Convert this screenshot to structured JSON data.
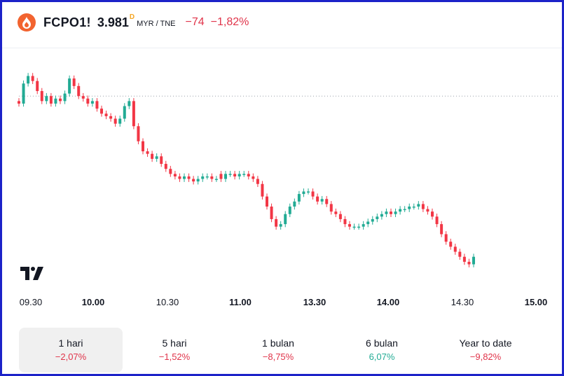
{
  "header": {
    "symbol": "FCPO1!",
    "price": "3.981",
    "delay_marker": "D",
    "currency": "MYR / TNE",
    "change": "−74",
    "change_percent": "−1,82%",
    "logo_icon": "flame-icon",
    "brand_color": "#f2632f",
    "negative_color": "#e0344a"
  },
  "chart_data": {
    "type": "candlestick",
    "title": "",
    "x_axis_labels": [
      {
        "label": "09.30",
        "major": false
      },
      {
        "label": "10.00",
        "major": true
      },
      {
        "label": "10.30",
        "major": false
      },
      {
        "label": "11.00",
        "major": true
      },
      {
        "label": "13.30",
        "major": true
      },
      {
        "label": "14.00",
        "major": true
      },
      {
        "label": "14.30",
        "major": false
      },
      {
        "label": "15.00",
        "major": true
      }
    ],
    "reference_line": "previous close (dotted)",
    "series_close_path": [
      [
        0,
        4042
      ],
      [
        1,
        4050
      ],
      [
        2,
        4053
      ],
      [
        3,
        4051
      ],
      [
        4,
        4047
      ],
      [
        5,
        4043
      ],
      [
        6,
        4045
      ],
      [
        7,
        4042
      ],
      [
        8,
        4044
      ],
      [
        9,
        4043
      ],
      [
        10,
        4046
      ],
      [
        11,
        4052
      ],
      [
        12,
        4049
      ],
      [
        13,
        4045
      ],
      [
        14,
        4044
      ],
      [
        15,
        4042
      ],
      [
        16,
        4043
      ],
      [
        17,
        4040
      ],
      [
        18,
        4038
      ],
      [
        19,
        4037
      ],
      [
        20,
        4036
      ],
      [
        21,
        4034
      ],
      [
        22,
        4036
      ],
      [
        23,
        4041
      ],
      [
        24,
        4043
      ],
      [
        25,
        4033
      ],
      [
        26,
        4027
      ],
      [
        27,
        4023
      ],
      [
        28,
        4022
      ],
      [
        29,
        4020
      ],
      [
        30,
        4021
      ],
      [
        31,
        4018
      ],
      [
        32,
        4016
      ],
      [
        33,
        4014
      ],
      [
        34,
        4013
      ],
      [
        35,
        4012
      ],
      [
        36,
        4013
      ],
      [
        37,
        4012
      ],
      [
        38,
        4011
      ],
      [
        39,
        4012
      ],
      [
        40,
        4013
      ],
      [
        41,
        4013
      ],
      [
        42,
        4012
      ],
      [
        43,
        4012
      ],
      [
        44,
        4012
      ],
      [
        45,
        4014
      ],
      [
        46,
        4014
      ],
      [
        47,
        4013
      ],
      [
        48,
        4014
      ],
      [
        49,
        4014
      ],
      [
        50,
        4013
      ],
      [
        51,
        4012
      ],
      [
        52,
        4010
      ],
      [
        53,
        4005
      ],
      [
        54,
        4001
      ],
      [
        55,
        3996
      ],
      [
        56,
        3993
      ],
      [
        57,
        3994
      ],
      [
        58,
        3998
      ],
      [
        59,
        4001
      ],
      [
        60,
        4003
      ],
      [
        61,
        4006
      ],
      [
        62,
        4007
      ],
      [
        63,
        4007
      ],
      [
        64,
        4005
      ],
      [
        65,
        4003
      ],
      [
        66,
        4004
      ],
      [
        67,
        4002
      ],
      [
        68,
        3999
      ],
      [
        69,
        3998
      ],
      [
        70,
        3996
      ],
      [
        71,
        3994
      ],
      [
        72,
        3993
      ],
      [
        73,
        3993
      ],
      [
        74,
        3993
      ],
      [
        75,
        3994
      ],
      [
        76,
        3995
      ],
      [
        77,
        3996
      ],
      [
        78,
        3997
      ],
      [
        79,
        3998
      ],
      [
        80,
        3999
      ],
      [
        81,
        3998
      ],
      [
        82,
        3999
      ],
      [
        83,
        4000
      ],
      [
        84,
        4000
      ],
      [
        85,
        4001
      ],
      [
        86,
        4001
      ],
      [
        87,
        4002
      ],
      [
        88,
        4000
      ],
      [
        89,
        3999
      ],
      [
        90,
        3997
      ],
      [
        91,
        3994
      ],
      [
        92,
        3990
      ],
      [
        93,
        3987
      ],
      [
        94,
        3985
      ],
      [
        95,
        3983
      ],
      [
        96,
        3981
      ],
      [
        97,
        3979
      ],
      [
        98,
        3978
      ],
      [
        99,
        3981
      ]
    ],
    "up_color": "#22ab94",
    "down_color": "#f23645",
    "grid": false
  },
  "periods": [
    {
      "label": "1 hari",
      "value": "−2,07%",
      "trend": "neg",
      "active": true
    },
    {
      "label": "5 hari",
      "value": "−1,52%",
      "trend": "neg",
      "active": false
    },
    {
      "label": "1 bulan",
      "value": "−8,75%",
      "trend": "neg",
      "active": false
    },
    {
      "label": "6 bulan",
      "value": "6,07%",
      "trend": "pos",
      "active": false
    },
    {
      "label": "Year to date",
      "value": "−9,82%",
      "trend": "neg",
      "active": false
    }
  ]
}
